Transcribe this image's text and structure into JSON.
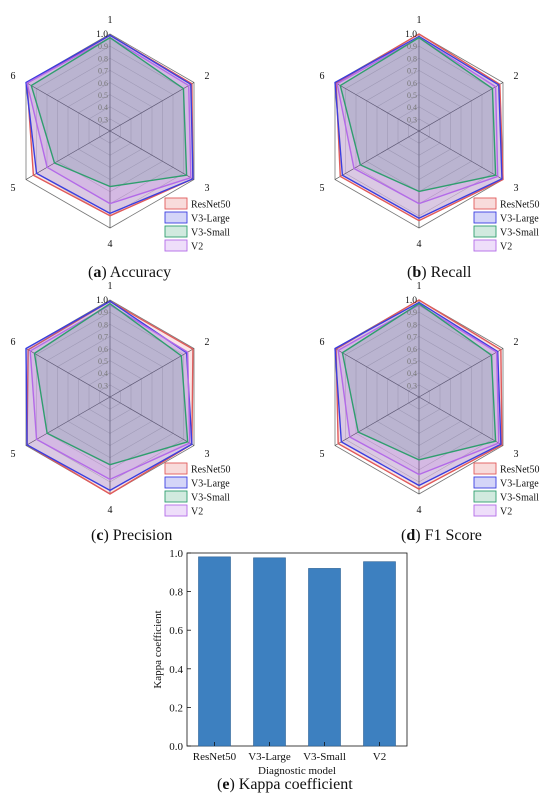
{
  "colors": {
    "ResNet50": "#e05a5a",
    "V3-Large": "#3a3ee0",
    "V3-Small": "#2f9e6e",
    "V2": "#b36ae8",
    "bar": "#3d80c0"
  },
  "captions": [
    {
      "letter": "a",
      "text": "Accuracy"
    },
    {
      "letter": "b",
      "text": "Recall"
    },
    {
      "letter": "c",
      "text": "Precision"
    },
    {
      "letter": "d",
      "text": "F1 Score"
    },
    {
      "letter": "e",
      "text": "Kappa coefficient"
    }
  ],
  "chart_data": [
    {
      "type": "radar",
      "axes": [
        "1",
        "2",
        "3",
        "4",
        "5",
        "6"
      ],
      "rticks": [
        "0.3",
        "0.4",
        "0.5",
        "0.6",
        "0.7",
        "0.8",
        "0.9",
        "1.0"
      ],
      "rlim": [
        0.3,
        1.0
      ],
      "legend": "bottom-right",
      "series": [
        {
          "name": "ResNet50",
          "values": [
            0.99,
            0.98,
            0.99,
            0.9,
            0.93,
            0.99
          ]
        },
        {
          "name": "V3-Large",
          "values": [
            0.99,
            0.97,
            0.99,
            0.88,
            0.9,
            1.0
          ]
        },
        {
          "name": "V3-Small",
          "values": [
            0.97,
            0.9,
            0.93,
            0.66,
            0.73,
            0.95
          ]
        },
        {
          "name": "V2",
          "values": [
            0.97,
            0.95,
            0.97,
            0.8,
            0.8,
            0.99
          ]
        }
      ]
    },
    {
      "type": "radar",
      "axes": [
        "1",
        "2",
        "3",
        "4",
        "5",
        "6"
      ],
      "rticks": [
        "0.3",
        "0.4",
        "0.5",
        "0.6",
        "0.7",
        "0.8",
        "0.9",
        "1.0"
      ],
      "rlim": [
        0.3,
        1.0
      ],
      "legend": "bottom-right",
      "series": [
        {
          "name": "ResNet50",
          "values": [
            1.0,
            0.97,
            1.0,
            0.94,
            0.95,
            0.99
          ]
        },
        {
          "name": "V3-Large",
          "values": [
            0.98,
            0.96,
            0.99,
            0.92,
            0.93,
            1.0
          ]
        },
        {
          "name": "V3-Small",
          "values": [
            0.97,
            0.9,
            0.93,
            0.7,
            0.76,
            0.95
          ]
        },
        {
          "name": "V2",
          "values": [
            0.97,
            0.93,
            0.95,
            0.8,
            0.82,
            0.98
          ]
        }
      ]
    },
    {
      "type": "radar",
      "axes": [
        "1",
        "2",
        "3",
        "4",
        "5",
        "6"
      ],
      "rticks": [
        "0.3",
        "0.4",
        "0.5",
        "0.6",
        "0.7",
        "0.8",
        "0.9",
        "1.0"
      ],
      "rlim": [
        0.3,
        1.0
      ],
      "legend": "bottom-right",
      "series": [
        {
          "name": "ResNet50",
          "values": [
            0.99,
            0.99,
            0.98,
            1.0,
            0.99,
            0.98
          ]
        },
        {
          "name": "V3-Large",
          "values": [
            0.99,
            0.93,
            0.98,
            0.97,
            0.99,
            1.0
          ]
        },
        {
          "name": "V3-Small",
          "values": [
            0.97,
            0.88,
            0.94,
            0.76,
            0.8,
            0.92
          ]
        },
        {
          "name": "V2",
          "values": [
            0.96,
            0.94,
            0.96,
            0.88,
            0.9,
            0.96
          ]
        }
      ]
    },
    {
      "type": "radar",
      "axes": [
        "1",
        "2",
        "3",
        "4",
        "5",
        "6"
      ],
      "rticks": [
        "0.3",
        "0.4",
        "0.5",
        "0.6",
        "0.7",
        "0.8",
        "0.9",
        "1.0"
      ],
      "rlim": [
        0.3,
        1.0
      ],
      "legend": "bottom-right",
      "series": [
        {
          "name": "ResNet50",
          "values": [
            1.0,
            0.98,
            0.99,
            0.96,
            0.97,
            0.99
          ]
        },
        {
          "name": "V3-Large",
          "values": [
            0.98,
            0.95,
            0.98,
            0.93,
            0.94,
            1.0
          ]
        },
        {
          "name": "V3-Small",
          "values": [
            0.97,
            0.89,
            0.93,
            0.72,
            0.78,
            0.93
          ]
        },
        {
          "name": "V2",
          "values": [
            0.96,
            0.94,
            0.96,
            0.84,
            0.86,
            0.97
          ]
        }
      ]
    },
    {
      "type": "bar",
      "categories": [
        "ResNet50",
        "V3-Large",
        "V3-Small",
        "V2"
      ],
      "values": [
        0.98,
        0.975,
        0.92,
        0.955
      ],
      "xlabel": "Diagnostic model",
      "ylabel": "Kappa coefficient",
      "ylim": [
        0.0,
        1.0
      ],
      "yticks": [
        "0.0",
        "0.2",
        "0.4",
        "0.6",
        "0.8",
        "1.0"
      ]
    }
  ]
}
